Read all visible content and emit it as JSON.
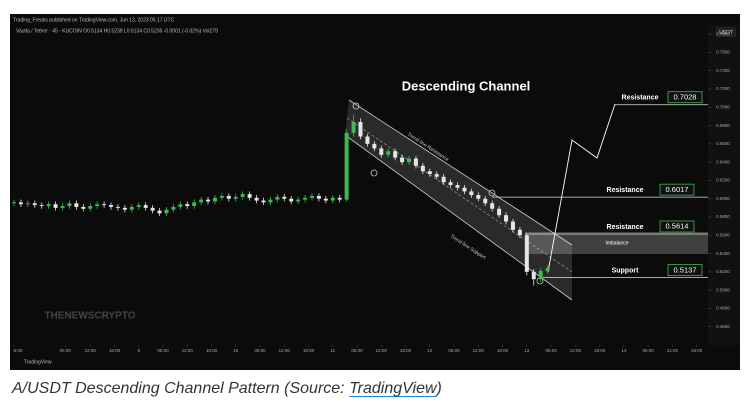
{
  "chart_data": {
    "type": "candlestick",
    "header": "Trading_Freaks published on TradingView.com, Jun 13, 2023 05:17 UTC",
    "symbol_line": "Vaulta / Tether · 45 · KUCOIN  O0.5134 H0.5239 L0.5134 C0.5236 -0.0001 (-0.02%) Vol279",
    "currency": "USDT",
    "title": "Descending Channel",
    "watermark": "THENEWSCRYPTO",
    "footer": "TradingView",
    "trend_resistance": "Trend line Resistance",
    "trend_support": "Trend line Support",
    "imbalance": "Imbalance",
    "up_color": "#3fb950",
    "down_color": "#e6e6e6",
    "ylim": [
      0.44,
      0.79
    ],
    "yticks": [
      {
        "value": 0.46,
        "label": "0.4600"
      },
      {
        "value": 0.48,
        "label": "0.4800"
      },
      {
        "value": 0.5,
        "label": "0.5000"
      },
      {
        "value": 0.52,
        "label": "0.5200"
      },
      {
        "value": 0.54,
        "label": "0.5400"
      },
      {
        "value": 0.56,
        "label": "0.5600"
      },
      {
        "value": 0.58,
        "label": "0.5800"
      },
      {
        "value": 0.6,
        "label": "0.6000"
      },
      {
        "value": 0.62,
        "label": "0.6200"
      },
      {
        "value": 0.64,
        "label": "0.6400"
      },
      {
        "value": 0.66,
        "label": "0.6600"
      },
      {
        "value": 0.68,
        "label": "0.6800"
      },
      {
        "value": 0.7,
        "label": "0.7000"
      },
      {
        "value": 0.72,
        "label": "0.7200"
      },
      {
        "value": 0.74,
        "label": "0.7400"
      },
      {
        "value": 0.76,
        "label": "0.7600"
      },
      {
        "value": 0.78,
        "label": "0.7800"
      }
    ],
    "xlim": [
      0,
      100
    ],
    "xticks": [
      {
        "value": 0,
        "label": "6:00"
      },
      {
        "value": 7.4,
        "label": "06:00"
      },
      {
        "value": 11,
        "label": "12:00"
      },
      {
        "value": 14.5,
        "label": "18:00"
      },
      {
        "value": 18,
        "label": "9"
      },
      {
        "value": 21.5,
        "label": "06:00"
      },
      {
        "value": 25,
        "label": "12:00"
      },
      {
        "value": 28.5,
        "label": "18:00"
      },
      {
        "value": 32,
        "label": "10"
      },
      {
        "value": 35.5,
        "label": "06:00"
      },
      {
        "value": 39,
        "label": "12:00"
      },
      {
        "value": 42.5,
        "label": "18:00"
      },
      {
        "value": 46,
        "label": "11"
      },
      {
        "value": 49.5,
        "label": "06:00"
      },
      {
        "value": 53,
        "label": "12:00"
      },
      {
        "value": 56.5,
        "label": "18:00"
      },
      {
        "value": 60,
        "label": "12"
      },
      {
        "value": 63.5,
        "label": "06:00"
      },
      {
        "value": 67,
        "label": "12:00"
      },
      {
        "value": 70.5,
        "label": "18:00"
      },
      {
        "value": 74,
        "label": "13"
      },
      {
        "value": 77.5,
        "label": "06:00"
      },
      {
        "value": 81,
        "label": "12:00"
      },
      {
        "value": 84.5,
        "label": "18:00"
      },
      {
        "value": 88,
        "label": "14"
      },
      {
        "value": 91.5,
        "label": "06:00"
      },
      {
        "value": 95,
        "label": "12:00"
      },
      {
        "value": 98.5,
        "label": "18:00"
      }
    ],
    "levels": [
      {
        "label": "Resistance",
        "value": 0.7028
      },
      {
        "label": "Resistance",
        "value": 0.6017
      },
      {
        "label": "Resistance",
        "value": 0.5614
      },
      {
        "label": "Support",
        "value": 0.5137
      }
    ],
    "ohlc": [
      [
        0.595,
        0.599,
        0.592,
        0.596
      ],
      [
        0.596,
        0.599,
        0.591,
        0.594
      ],
      [
        0.594,
        0.598,
        0.591,
        0.595
      ],
      [
        0.595,
        0.598,
        0.59,
        0.593
      ],
      [
        0.593,
        0.596,
        0.589,
        0.592
      ],
      [
        0.592,
        0.597,
        0.589,
        0.594
      ],
      [
        0.594,
        0.597,
        0.587,
        0.59
      ],
      [
        0.59,
        0.595,
        0.587,
        0.592
      ],
      [
        0.592,
        0.598,
        0.589,
        0.595
      ],
      [
        0.595,
        0.598,
        0.588,
        0.591
      ],
      [
        0.591,
        0.594,
        0.586,
        0.589
      ],
      [
        0.589,
        0.595,
        0.586,
        0.592
      ],
      [
        0.592,
        0.597,
        0.589,
        0.594
      ],
      [
        0.594,
        0.597,
        0.59,
        0.593
      ],
      [
        0.593,
        0.596,
        0.588,
        0.591
      ],
      [
        0.591,
        0.594,
        0.587,
        0.59
      ],
      [
        0.59,
        0.593,
        0.585,
        0.588
      ],
      [
        0.588,
        0.594,
        0.585,
        0.591
      ],
      [
        0.591,
        0.596,
        0.588,
        0.593
      ],
      [
        0.593,
        0.596,
        0.587,
        0.59
      ],
      [
        0.59,
        0.593,
        0.584,
        0.587
      ],
      [
        0.587,
        0.59,
        0.581,
        0.584
      ],
      [
        0.584,
        0.591,
        0.581,
        0.588
      ],
      [
        0.588,
        0.594,
        0.585,
        0.591
      ],
      [
        0.591,
        0.597,
        0.588,
        0.594
      ],
      [
        0.594,
        0.597,
        0.589,
        0.592
      ],
      [
        0.592,
        0.599,
        0.589,
        0.596
      ],
      [
        0.596,
        0.602,
        0.593,
        0.599
      ],
      [
        0.599,
        0.602,
        0.594,
        0.597
      ],
      [
        0.597,
        0.604,
        0.594,
        0.601
      ],
      [
        0.601,
        0.606,
        0.598,
        0.603
      ],
      [
        0.603,
        0.606,
        0.597,
        0.6
      ],
      [
        0.6,
        0.605,
        0.597,
        0.602
      ],
      [
        0.602,
        0.608,
        0.599,
        0.605
      ],
      [
        0.605,
        0.608,
        0.598,
        0.601
      ],
      [
        0.601,
        0.604,
        0.595,
        0.598
      ],
      [
        0.598,
        0.601,
        0.593,
        0.596
      ],
      [
        0.596,
        0.602,
        0.593,
        0.599
      ],
      [
        0.599,
        0.605,
        0.596,
        0.602
      ],
      [
        0.602,
        0.605,
        0.597,
        0.6
      ],
      [
        0.6,
        0.603,
        0.594,
        0.597
      ],
      [
        0.597,
        0.602,
        0.594,
        0.599
      ],
      [
        0.599,
        0.604,
        0.596,
        0.601
      ],
      [
        0.601,
        0.606,
        0.598,
        0.603
      ],
      [
        0.603,
        0.606,
        0.597,
        0.6
      ],
      [
        0.6,
        0.603,
        0.595,
        0.598
      ],
      [
        0.598,
        0.604,
        0.595,
        0.601
      ],
      [
        0.601,
        0.604,
        0.596,
        0.599
      ],
      [
        0.599,
        0.676,
        0.597,
        0.672
      ],
      [
        0.672,
        0.692,
        0.668,
        0.684
      ],
      [
        0.684,
        0.688,
        0.665,
        0.668
      ],
      [
        0.668,
        0.671,
        0.657,
        0.66
      ],
      [
        0.66,
        0.663,
        0.652,
        0.655
      ],
      [
        0.655,
        0.658,
        0.645,
        0.648
      ],
      [
        0.648,
        0.655,
        0.645,
        0.652
      ],
      [
        0.652,
        0.655,
        0.642,
        0.645
      ],
      [
        0.645,
        0.648,
        0.637,
        0.64
      ],
      [
        0.64,
        0.647,
        0.637,
        0.644
      ],
      [
        0.644,
        0.647,
        0.633,
        0.636
      ],
      [
        0.636,
        0.639,
        0.627,
        0.63
      ],
      [
        0.63,
        0.633,
        0.624,
        0.627
      ],
      [
        0.627,
        0.63,
        0.621,
        0.624
      ],
      [
        0.624,
        0.627,
        0.615,
        0.618
      ],
      [
        0.618,
        0.621,
        0.612,
        0.615
      ],
      [
        0.615,
        0.618,
        0.609,
        0.612
      ],
      [
        0.612,
        0.615,
        0.605,
        0.608
      ],
      [
        0.608,
        0.611,
        0.601,
        0.604
      ],
      [
        0.604,
        0.607,
        0.597,
        0.6
      ],
      [
        0.6,
        0.603,
        0.592,
        0.595
      ],
      [
        0.595,
        0.598,
        0.586,
        0.589
      ],
      [
        0.589,
        0.592,
        0.579,
        0.582
      ],
      [
        0.582,
        0.585,
        0.572,
        0.575
      ],
      [
        0.575,
        0.578,
        0.563,
        0.566
      ],
      [
        0.566,
        0.569,
        0.557,
        0.56
      ],
      [
        0.56,
        0.562,
        0.516,
        0.52
      ],
      [
        0.52,
        0.523,
        0.505,
        0.512
      ],
      [
        0.512,
        0.524,
        0.509,
        0.521
      ],
      [
        0.521,
        0.527,
        0.518,
        0.524
      ]
    ]
  },
  "caption": {
    "before": "A/USDT Descending Channel Pattern (Source: ",
    "link": "TradingView",
    "after": ")"
  }
}
